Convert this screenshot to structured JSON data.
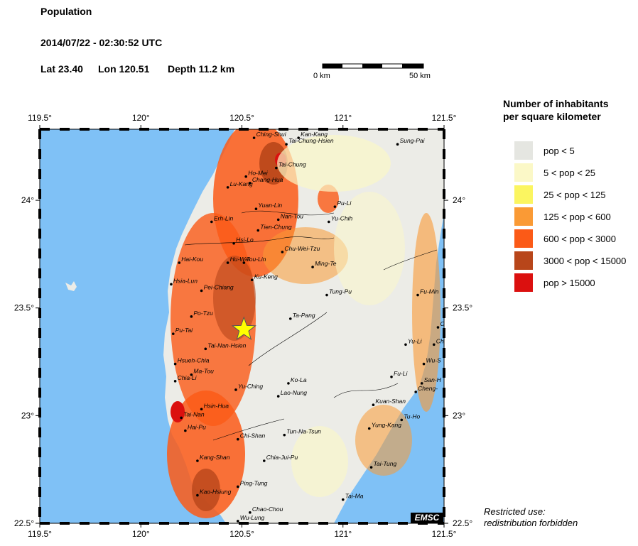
{
  "header": {
    "title": "Population",
    "datetime": "2014/07/22 - 02:30:52 UTC",
    "lat": "Lat 23.40",
    "lon": "Lon 120.51",
    "depth": "Depth  11.2 km"
  },
  "scalebar": {
    "left_label": "0 km",
    "right_label": "50 km"
  },
  "map": {
    "x_ticks": [
      {
        "label": "119.5°",
        "lon": 119.5
      },
      {
        "label": "120°",
        "lon": 120.0
      },
      {
        "label": "120.5°",
        "lon": 120.5
      },
      {
        "label": "121°",
        "lon": 121.0
      },
      {
        "label": "121.5°",
        "lon": 121.5
      }
    ],
    "y_ticks": [
      {
        "label": "24°",
        "lat": 24.0
      },
      {
        "label": "23.5°",
        "lat": 23.5
      },
      {
        "label": "23°",
        "lat": 23.0
      },
      {
        "label": "22.5°",
        "lat": 22.5
      }
    ],
    "epicenter": {
      "lat": 23.4,
      "lon": 120.51
    },
    "cities": [
      {
        "name": "Ching-Shui",
        "lon": 120.56,
        "lat": 24.29
      },
      {
        "name": "Kan-Kang",
        "lon": 120.78,
        "lat": 24.29
      },
      {
        "name": "Tai-Chung-Hsien",
        "lon": 120.72,
        "lat": 24.26
      },
      {
        "name": "Sung-Pai",
        "lon": 121.27,
        "lat": 24.26
      },
      {
        "name": "Tai-Chung",
        "lon": 120.67,
        "lat": 24.15
      },
      {
        "name": "Ho-Mei",
        "lon": 120.52,
        "lat": 24.11
      },
      {
        "name": "Chang-Hua",
        "lon": 120.54,
        "lat": 24.08
      },
      {
        "name": "Lu-Kang",
        "lon": 120.43,
        "lat": 24.06
      },
      {
        "name": "Pu-Li",
        "lon": 120.96,
        "lat": 23.97
      },
      {
        "name": "Yuan-Lin",
        "lon": 120.57,
        "lat": 23.96
      },
      {
        "name": "Nan-Tou",
        "lon": 120.68,
        "lat": 23.91
      },
      {
        "name": "Yu-Chih",
        "lon": 120.93,
        "lat": 23.9
      },
      {
        "name": "Erh-Lin",
        "lon": 120.35,
        "lat": 23.9
      },
      {
        "name": "Tien-Chung",
        "lon": 120.58,
        "lat": 23.86
      },
      {
        "name": "Hsi-Lo",
        "lon": 120.46,
        "lat": 23.8
      },
      {
        "name": "Chu-Wei-Tzu",
        "lon": 120.7,
        "lat": 23.76
      },
      {
        "name": "Hai-Kou",
        "lon": 120.19,
        "lat": 23.71
      },
      {
        "name": "Hu-Wei",
        "lon": 120.43,
        "lat": 23.71
      },
      {
        "name": "Tou-Lin",
        "lon": 120.51,
        "lat": 23.71
      },
      {
        "name": "Ming-Te",
        "lon": 120.85,
        "lat": 23.69
      },
      {
        "name": "Ku-Keng",
        "lon": 120.55,
        "lat": 23.63
      },
      {
        "name": "Hsia-Lun",
        "lon": 120.15,
        "lat": 23.61
      },
      {
        "name": "Pei-Chiang",
        "lon": 120.3,
        "lat": 23.58
      },
      {
        "name": "Tung-Pu",
        "lon": 120.92,
        "lat": 23.56
      },
      {
        "name": "Fu-Min",
        "lon": 121.37,
        "lat": 23.56
      },
      {
        "name": "Po-Tzu",
        "lon": 120.25,
        "lat": 23.46
      },
      {
        "name": "Ta-Pang",
        "lon": 120.74,
        "lat": 23.45
      },
      {
        "name": "Pu-Tai",
        "lon": 120.16,
        "lat": 23.38
      },
      {
        "name": "Yu-Li",
        "lon": 121.31,
        "lat": 23.33
      },
      {
        "name": "Tai-Nan-Hsien",
        "lon": 120.32,
        "lat": 23.31
      },
      {
        "name": "Hsueh-Chia",
        "lon": 120.17,
        "lat": 23.24
      },
      {
        "name": "Ma-Tou",
        "lon": 120.25,
        "lat": 23.19
      },
      {
        "name": "Chia-Li",
        "lon": 120.17,
        "lat": 23.16
      },
      {
        "name": "Fu-Li",
        "lon": 121.24,
        "lat": 23.18
      },
      {
        "name": "Ko-La",
        "lon": 120.73,
        "lat": 23.15
      },
      {
        "name": "Yu-Ching",
        "lon": 120.47,
        "lat": 23.12
      },
      {
        "name": "Lao-Nung",
        "lon": 120.68,
        "lat": 23.09
      },
      {
        "name": "Kuan-Shan",
        "lon": 121.15,
        "lat": 23.05
      },
      {
        "name": "Hsin-Hua",
        "lon": 120.3,
        "lat": 23.03
      },
      {
        "name": "Tai-Nan",
        "lon": 120.2,
        "lat": 22.99
      },
      {
        "name": "Tu-Ho",
        "lon": 121.29,
        "lat": 22.98
      },
      {
        "name": "Yung-Kang",
        "lon": 121.13,
        "lat": 22.94
      },
      {
        "name": "Hai-Pu",
        "lon": 120.22,
        "lat": 22.93
      },
      {
        "name": "Tun-Na-Tsun",
        "lon": 120.71,
        "lat": 22.91
      },
      {
        "name": "Chi-Shan",
        "lon": 120.48,
        "lat": 22.89
      },
      {
        "name": "Kang-Shan",
        "lon": 120.28,
        "lat": 22.79
      },
      {
        "name": "Chia-Jui-Pu",
        "lon": 120.61,
        "lat": 22.79
      },
      {
        "name": "Tai-Tung",
        "lon": 121.14,
        "lat": 22.76
      },
      {
        "name": "Ping-Tung",
        "lon": 120.48,
        "lat": 22.67
      },
      {
        "name": "Kao-Hsiung",
        "lon": 120.28,
        "lat": 22.63
      },
      {
        "name": "Tai-Ma",
        "lon": 121.0,
        "lat": 22.61
      },
      {
        "name": "Chao-Chou",
        "lon": 120.54,
        "lat": 22.55
      },
      {
        "name": "Wu-Lung",
        "lon": 120.48,
        "lat": 22.51
      },
      {
        "name": "Chi",
        "lon": 121.45,
        "lat": 23.33
      },
      {
        "name": "Wu-S",
        "lon": 121.4,
        "lat": 23.24
      },
      {
        "name": "San-H",
        "lon": 121.39,
        "lat": 23.15
      },
      {
        "name": "Cheng-",
        "lon": 121.36,
        "lat": 23.11
      },
      {
        "name": "C",
        "lon": 121.47,
        "lat": 23.41
      }
    ]
  },
  "legend": {
    "title_line1": "Number of inhabitants",
    "title_line2": "per square kilometer",
    "items": [
      {
        "label": "pop < 5",
        "color": "#e5e6e1"
      },
      {
        "label": "5 < pop < 25",
        "color": "#fbf8c7"
      },
      {
        "label": "25 < pop < 125",
        "color": "#fbf560"
      },
      {
        "label": "125 < pop < 600",
        "color": "#fa9a35"
      },
      {
        "label": "600 < pop < 3000",
        "color": "#fb5a17"
      },
      {
        "label": "3000 < pop < 15000",
        "color": "#b8461a"
      },
      {
        "label": "pop > 15000",
        "color": "#db100f"
      }
    ]
  },
  "colors": {
    "sea": "#7fc1f6",
    "epicenter": "#ffff00"
  },
  "note": {
    "line1": "Restricted use:",
    "line2": "redistribution forbidden"
  },
  "logo": "EMSC"
}
